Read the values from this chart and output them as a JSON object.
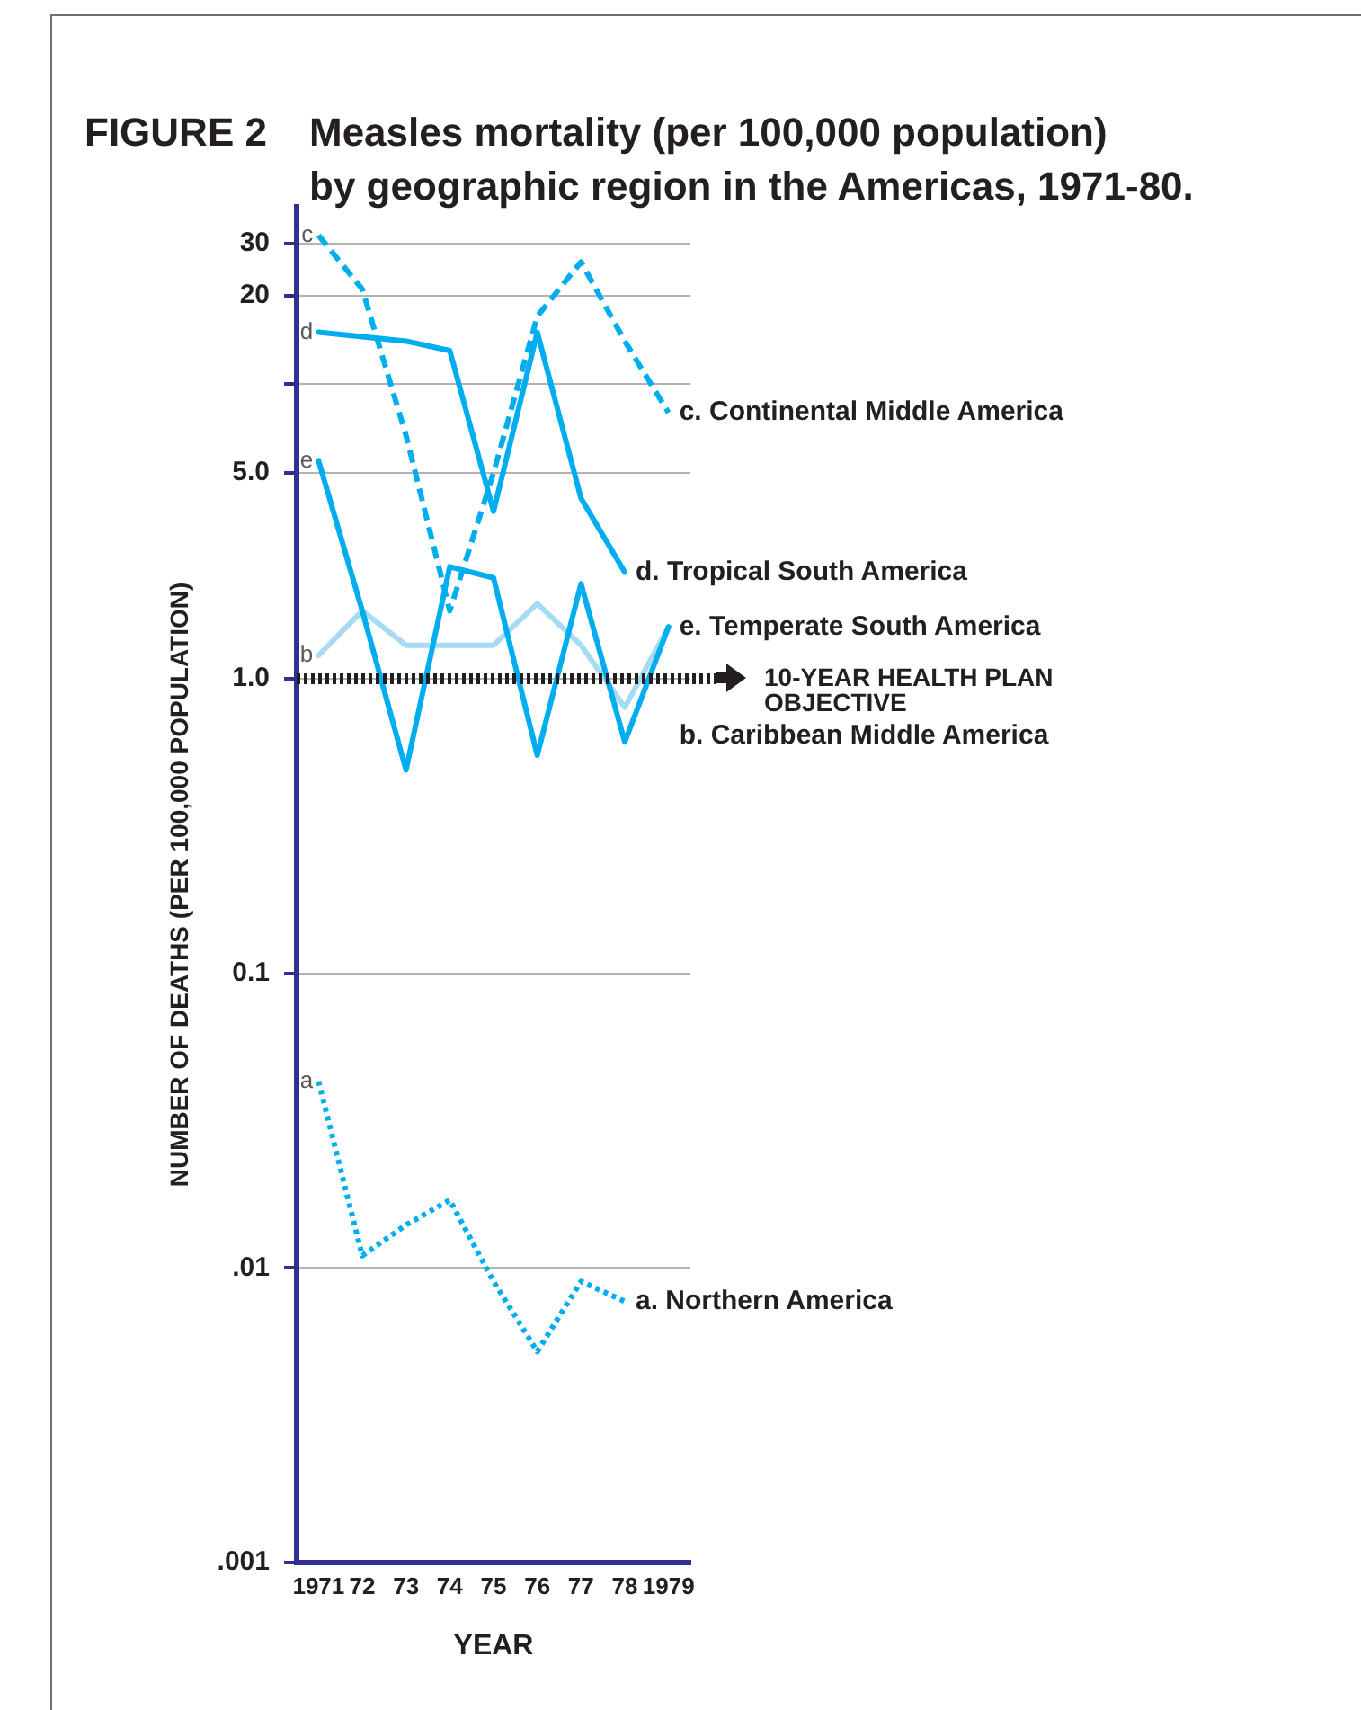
{
  "chart_data": {
    "type": "line",
    "title": "Measles mortality (per 100,000 population)\nby geographic region in the Americas, 1971-80.",
    "xlabel": "YEAR",
    "ylabel": "NUMBER OF DEATHS (PER 100,000 POPULATION)",
    "categories": [
      "1971",
      "72",
      "73",
      "74",
      "75",
      "76",
      "77",
      "78",
      "1979"
    ],
    "series": [
      {
        "name": "c. Continental Middle America",
        "color": "#00aeef",
        "line_style": "dashed",
        "values": [
          32,
          21,
          6.7,
          1.7,
          5,
          17,
          26,
          14,
          8
        ]
      },
      {
        "name": "d. Tropical South America",
        "color": "#00aeef",
        "values": [
          15,
          14.5,
          14,
          13,
          3.7,
          15,
          4.1,
          2.3,
          null
        ]
      },
      {
        "name": "e. Temperate South America",
        "color": "#00aeef",
        "values": [
          5.5,
          1.7,
          0.49,
          2.4,
          2.2,
          0.55,
          2.1,
          0.61,
          1.5
        ]
      },
      {
        "name": "b. Caribbean Middle America",
        "color": "#a7dbf3",
        "values": [
          1.2,
          1.7,
          1.3,
          1.3,
          1.3,
          1.8,
          1.3,
          0.8,
          1.5
        ]
      },
      {
        "name": "a. Northern America",
        "color": "#00aeef",
        "line_style": "dotted",
        "values": [
          0.043,
          0.011,
          0.014,
          0.017,
          0.009,
          0.0052,
          0.009,
          0.0077,
          null
        ]
      }
    ],
    "log": true,
    "ylim": [
      0.001,
      40
    ],
    "yticks": [
      {
        "value": 0.001,
        "label": ".001"
      },
      {
        "value": 0.01,
        "label": ".01"
      },
      0.1,
      {
        "value": 1,
        "label": "1.0"
      },
      {
        "value": 5,
        "label": "5.0"
      },
      {
        "value": 10,
        "label": null
      },
      20,
      30
    ],
    "grid": "y",
    "ref_lines": [
      {
        "axis": "y",
        "value": 1,
        "label": "10-YEAR HEALTH PLAN OBJECTIVE",
        "color": "#231f20",
        "line_style": "dotted"
      }
    ],
    "annotations": [
      "FIGURE 2",
      {
        "text": "c",
        "x": "1971",
        "y": 32
      },
      {
        "text": "d",
        "x": "1971",
        "y": 15
      },
      {
        "text": "e",
        "x": "1971",
        "y": 5.5
      },
      {
        "text": "b",
        "x": "1971",
        "y": 1.2
      },
      {
        "text": "a",
        "x": "1971",
        "y": 0.043
      }
    ]
  }
}
